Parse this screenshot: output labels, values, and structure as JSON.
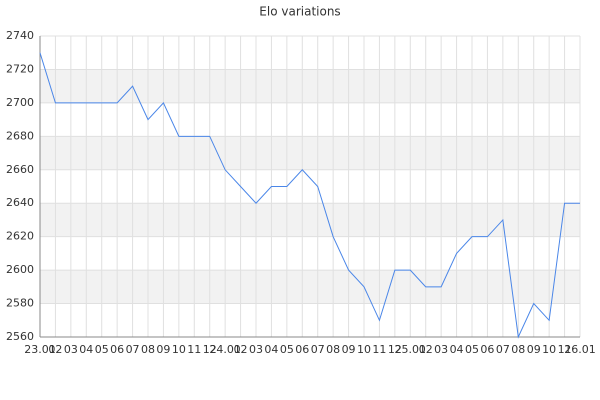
{
  "chart_data": {
    "type": "line",
    "title": "Elo variations",
    "categories": [
      "23.01",
      "02",
      "03",
      "04",
      "05",
      "06",
      "07",
      "08",
      "09",
      "10",
      "11",
      "12",
      "24.01",
      "02",
      "03",
      "04",
      "05",
      "06",
      "07",
      "08",
      "09",
      "10",
      "11",
      "12",
      "25.01",
      "02",
      "03",
      "04",
      "05",
      "06",
      "07",
      "08",
      "09",
      "10",
      "11",
      "26.01"
    ],
    "series": [
      {
        "name": "Elo",
        "color": "#4a86e8",
        "values": [
          2730,
          2700,
          2700,
          2700,
          2700,
          2700,
          2710,
          2690,
          2700,
          2680,
          2680,
          2680,
          2660,
          2650,
          2640,
          2650,
          2650,
          2660,
          2650,
          2620,
          2600,
          2590,
          2570,
          2600,
          2600,
          2590,
          2590,
          2610,
          2620,
          2620,
          2630,
          2560,
          2580,
          2570,
          2640,
          2640
        ]
      }
    ],
    "ylim": [
      2560,
      2740
    ],
    "yticks": [
      2560,
      2580,
      2600,
      2620,
      2640,
      2660,
      2680,
      2700,
      2720,
      2740
    ],
    "grid": true
  }
}
